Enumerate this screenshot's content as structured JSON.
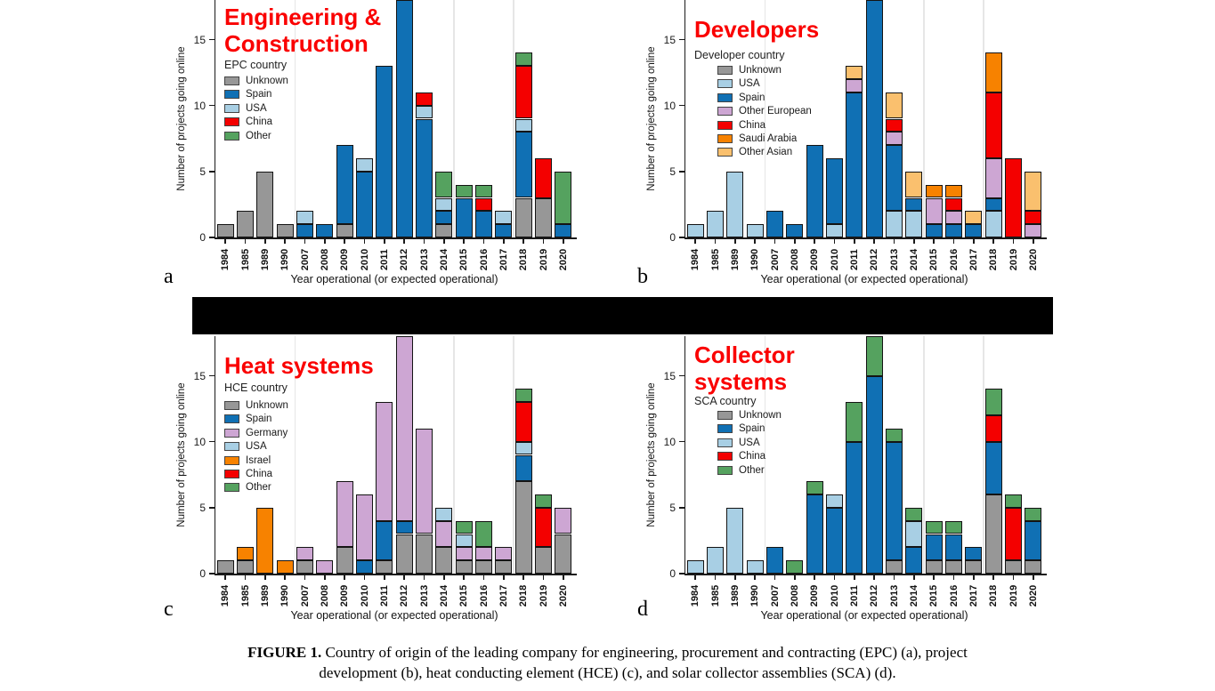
{
  "figure": {
    "caption_label": "FIGURE 1.",
    "caption_text": " Country of origin of the leading company for engineering, procurement and contracting (EPC) (a), project development (b), heat conducting element (HCE) (c), and solar collector assemblies (SCA) (d)."
  },
  "colors": {
    "title_red": "#fa0000",
    "unknown": "#979797",
    "spain": "#1070b4",
    "usa": "#a8cfe4",
    "china": "#f40000",
    "other": "#55a25f",
    "plum": "#cda6d3",
    "orange": "#f78200",
    "tan": "#fac06e"
  },
  "chart_data": [
    {
      "type": "bar",
      "panel": "a",
      "panel_letter": "a",
      "title_lines": [
        "Engineering &",
        "Construction"
      ],
      "legend_title": "EPC country",
      "xlabel": "Year operational (or expected operational)",
      "ylabel": "Number of projects going online",
      "ylim": [
        0,
        18
      ],
      "yticks": [
        0,
        5,
        10,
        15
      ],
      "grid_boundaries": [
        4,
        12,
        15
      ],
      "categories": [
        "1984",
        "1985",
        "1989",
        "1990",
        "2007",
        "2008",
        "2009",
        "2010",
        "2011",
        "2012",
        "2013",
        "2014",
        "2015",
        "2016",
        "2017",
        "2018",
        "2019",
        "2020"
      ],
      "series": [
        {
          "name": "Unknown",
          "color": "#979797",
          "values": [
            1,
            2,
            5,
            1,
            0,
            0,
            1,
            0,
            0,
            0,
            0,
            1,
            0,
            0,
            0,
            3,
            3,
            0
          ]
        },
        {
          "name": "Spain",
          "color": "#1070b4",
          "values": [
            0,
            0,
            0,
            0,
            1,
            1,
            6,
            5,
            13,
            18,
            9,
            1,
            3,
            2,
            1,
            5,
            0,
            1
          ]
        },
        {
          "name": "USA",
          "color": "#a8cfe4",
          "values": [
            0,
            0,
            0,
            0,
            1,
            0,
            0,
            1,
            0,
            0,
            1,
            1,
            0,
            0,
            1,
            1,
            0,
            0
          ]
        },
        {
          "name": "China",
          "color": "#f40000",
          "values": [
            0,
            0,
            0,
            0,
            0,
            0,
            0,
            0,
            0,
            0,
            1,
            0,
            0,
            1,
            0,
            4,
            3,
            0
          ]
        },
        {
          "name": "Other",
          "color": "#55a25f",
          "values": [
            0,
            0,
            0,
            0,
            0,
            0,
            0,
            0,
            0,
            0,
            0,
            2,
            1,
            1,
            0,
            1,
            0,
            4
          ]
        }
      ]
    },
    {
      "type": "bar",
      "panel": "b",
      "panel_letter": "b",
      "title_lines": [
        "Developers"
      ],
      "legend_title": "Developer country",
      "xlabel": "Year operational (or expected operational)",
      "ylabel": "Number of projects going online",
      "ylim": [
        0,
        18
      ],
      "yticks": [
        0,
        5,
        10,
        15
      ],
      "grid_boundaries": [
        4,
        12,
        15
      ],
      "categories": [
        "1984",
        "1985",
        "1989",
        "1990",
        "2007",
        "2008",
        "2009",
        "2010",
        "2011",
        "2012",
        "2013",
        "2014",
        "2015",
        "2016",
        "2017",
        "2018",
        "2019",
        "2020"
      ],
      "series": [
        {
          "name": "Unknown",
          "color": "#979797",
          "values": [
            0,
            0,
            0,
            0,
            0,
            0,
            0,
            0,
            0,
            0,
            0,
            0,
            0,
            0,
            0,
            0,
            0,
            0
          ]
        },
        {
          "name": "USA",
          "color": "#a8cfe4",
          "values": [
            1,
            2,
            5,
            1,
            0,
            0,
            0,
            1,
            0,
            0,
            2,
            2,
            0,
            0,
            0,
            2,
            0,
            0
          ]
        },
        {
          "name": "Spain",
          "color": "#1070b4",
          "values": [
            0,
            0,
            0,
            0,
            2,
            1,
            7,
            5,
            11,
            18,
            5,
            1,
            1,
            1,
            1,
            1,
            0,
            0
          ]
        },
        {
          "name": "Other European",
          "color": "#cda6d3",
          "values": [
            0,
            0,
            0,
            0,
            0,
            0,
            0,
            0,
            1,
            0,
            1,
            0,
            2,
            1,
            0,
            3,
            0,
            1
          ]
        },
        {
          "name": "China",
          "color": "#f40000",
          "values": [
            0,
            0,
            0,
            0,
            0,
            0,
            0,
            0,
            0,
            0,
            1,
            0,
            0,
            1,
            0,
            5,
            6,
            1
          ]
        },
        {
          "name": "Saudi Arabia",
          "color": "#f78200",
          "values": [
            0,
            0,
            0,
            0,
            0,
            0,
            0,
            0,
            0,
            0,
            0,
            0,
            1,
            1,
            0,
            3,
            0,
            0
          ]
        },
        {
          "name": "Other Asian",
          "color": "#fac06e",
          "values": [
            0,
            0,
            0,
            0,
            0,
            0,
            0,
            0,
            1,
            0,
            2,
            2,
            0,
            0,
            1,
            0,
            0,
            3
          ]
        }
      ]
    },
    {
      "type": "bar",
      "panel": "c",
      "panel_letter": "c",
      "title_lines": [
        "Heat systems"
      ],
      "legend_title": "HCE country",
      "xlabel": "Year operational (or expected operational)",
      "ylabel": "Number of projects going online",
      "ylim": [
        0,
        18
      ],
      "yticks": [
        0,
        5,
        10,
        15
      ],
      "grid_boundaries": [
        4,
        12,
        15
      ],
      "categories": [
        "1984",
        "1985",
        "1989",
        "1990",
        "2007",
        "2008",
        "2009",
        "2010",
        "2011",
        "2012",
        "2013",
        "2014",
        "2015",
        "2016",
        "2017",
        "2018",
        "2019",
        "2020"
      ],
      "series": [
        {
          "name": "Unknown",
          "color": "#979797",
          "values": [
            1,
            1,
            0,
            0,
            1,
            0,
            2,
            0,
            1,
            3,
            3,
            2,
            1,
            1,
            1,
            7,
            2,
            3
          ]
        },
        {
          "name": "Spain",
          "color": "#1070b4",
          "values": [
            0,
            0,
            0,
            0,
            0,
            0,
            0,
            1,
            3,
            1,
            0,
            0,
            0,
            0,
            0,
            2,
            0,
            0
          ]
        },
        {
          "name": "Germany",
          "color": "#cda6d3",
          "values": [
            0,
            0,
            0,
            0,
            1,
            1,
            5,
            5,
            9,
            14,
            8,
            2,
            1,
            1,
            1,
            0,
            0,
            2
          ]
        },
        {
          "name": "USA",
          "color": "#a8cfe4",
          "values": [
            0,
            0,
            0,
            0,
            0,
            0,
            0,
            0,
            0,
            0,
            0,
            1,
            1,
            0,
            0,
            1,
            0,
            0
          ]
        },
        {
          "name": "Israel",
          "color": "#f78200",
          "values": [
            0,
            1,
            5,
            1,
            0,
            0,
            0,
            0,
            0,
            0,
            0,
            0,
            0,
            0,
            0,
            0,
            0,
            0
          ]
        },
        {
          "name": "China",
          "color": "#f40000",
          "values": [
            0,
            0,
            0,
            0,
            0,
            0,
            0,
            0,
            0,
            0,
            0,
            0,
            0,
            0,
            0,
            3,
            3,
            0
          ]
        },
        {
          "name": "Other",
          "color": "#55a25f",
          "values": [
            0,
            0,
            0,
            0,
            0,
            0,
            0,
            0,
            0,
            0,
            0,
            0,
            1,
            2,
            0,
            1,
            1,
            0
          ]
        }
      ]
    },
    {
      "type": "bar",
      "panel": "d",
      "panel_letter": "d",
      "title_lines": [
        "Collector",
        "systems"
      ],
      "legend_title": "SCA country",
      "xlabel": "Year operational (or expected operational)",
      "ylabel": "Number of projects going online",
      "ylim": [
        0,
        18
      ],
      "yticks": [
        0,
        5,
        10,
        15
      ],
      "grid_boundaries": [
        4,
        12,
        15
      ],
      "categories": [
        "1984",
        "1985",
        "1989",
        "1990",
        "2007",
        "2008",
        "2009",
        "2010",
        "2011",
        "2012",
        "2013",
        "2014",
        "2015",
        "2016",
        "2017",
        "2018",
        "2019",
        "2020"
      ],
      "series": [
        {
          "name": "Unknown",
          "color": "#979797",
          "values": [
            0,
            0,
            0,
            0,
            0,
            0,
            0,
            0,
            0,
            0,
            1,
            0,
            1,
            1,
            1,
            6,
            1,
            1
          ]
        },
        {
          "name": "Spain",
          "color": "#1070b4",
          "values": [
            0,
            0,
            0,
            0,
            2,
            0,
            6,
            5,
            10,
            15,
            9,
            2,
            2,
            2,
            1,
            4,
            0,
            3
          ]
        },
        {
          "name": "USA",
          "color": "#a8cfe4",
          "values": [
            1,
            2,
            5,
            1,
            0,
            0,
            0,
            1,
            0,
            0,
            0,
            2,
            0,
            0,
            0,
            0,
            0,
            0
          ]
        },
        {
          "name": "China",
          "color": "#f40000",
          "values": [
            0,
            0,
            0,
            0,
            0,
            0,
            0,
            0,
            0,
            0,
            0,
            0,
            0,
            0,
            0,
            2,
            4,
            0
          ]
        },
        {
          "name": "Other",
          "color": "#55a25f",
          "values": [
            0,
            0,
            0,
            0,
            0,
            1,
            1,
            0,
            3,
            3,
            1,
            1,
            1,
            1,
            0,
            2,
            1,
            1
          ]
        }
      ]
    }
  ]
}
